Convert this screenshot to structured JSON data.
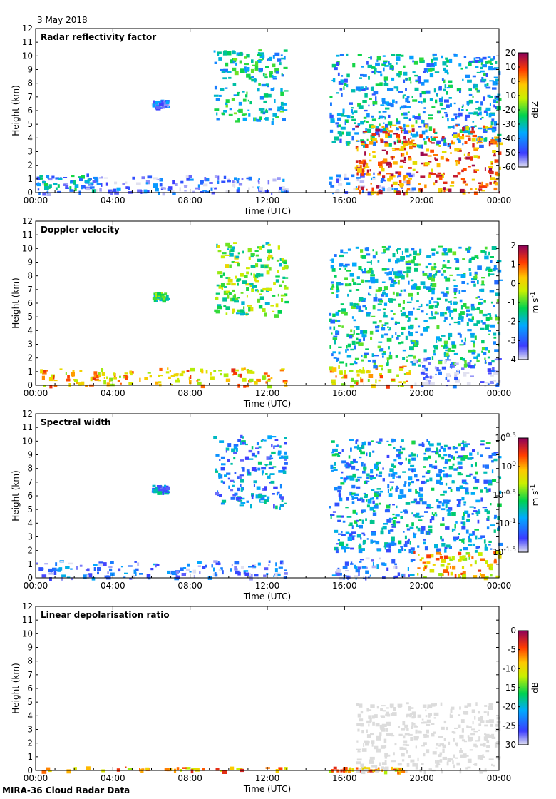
{
  "date": "3 May 2018",
  "footer": "MIRA-36 Cloud Radar Data",
  "chart_data": [
    {
      "type": "heatmap",
      "title": "Radar reflectivity factor",
      "xlabel": "Time (UTC)",
      "ylabel": "Height (km)",
      "x_ticks": [
        "00:00",
        "04:00",
        "08:00",
        "12:00",
        "16:00",
        "20:00",
        "00:00"
      ],
      "y_ticks": [
        "0",
        "1",
        "2",
        "3",
        "4",
        "5",
        "6",
        "7",
        "8",
        "9",
        "10",
        "11",
        "12"
      ],
      "xlim": [
        0,
        24
      ],
      "ylim": [
        0,
        12
      ],
      "colorbar": {
        "label": "dBZ",
        "range": [
          -60,
          20
        ],
        "ticks": [
          "20",
          "10",
          "0",
          "-10",
          "-20",
          "-30",
          "-40",
          "-50",
          "-60"
        ]
      },
      "features": [
        {
          "name": "boundary-layer",
          "t0": 0.0,
          "t1": 13.0,
          "z0": 0.0,
          "z1": 1.3,
          "value": -50
        },
        {
          "name": "low-cloud-bump",
          "t0": 0.0,
          "t1": 3.0,
          "z0": 0.2,
          "z1": 1.4,
          "value": -35
        },
        {
          "name": "mid-patch",
          "t0": 6.0,
          "t1": 6.8,
          "z0": 6.3,
          "z1": 6.8,
          "value": -48
        },
        {
          "name": "upper-streak",
          "t0": 9.2,
          "t1": 12.9,
          "z0": 5.2,
          "z1": 10.5,
          "value": -30
        },
        {
          "name": "late-boundary-layer",
          "t0": 15.2,
          "t1": 19.5,
          "z0": 0.0,
          "z1": 1.5,
          "value": -50
        },
        {
          "name": "deep-system-top",
          "t0": 15.2,
          "t1": 24.0,
          "z0": 3.5,
          "z1": 10.2,
          "value": -35
        },
        {
          "name": "deep-system-core",
          "t0": 16.5,
          "t1": 24.0,
          "z0": 0.0,
          "z1": 5.0,
          "value": 5
        }
      ]
    },
    {
      "type": "heatmap",
      "title": "Doppler velocity",
      "xlabel": "Time (UTC)",
      "ylabel": "Height (km)",
      "x_ticks": [
        "00:00",
        "04:00",
        "08:00",
        "12:00",
        "16:00",
        "20:00",
        "00:00"
      ],
      "y_ticks": [
        "0",
        "1",
        "2",
        "3",
        "4",
        "5",
        "6",
        "7",
        "8",
        "9",
        "10",
        "11",
        "12"
      ],
      "xlim": [
        0,
        24
      ],
      "ylim": [
        0,
        12
      ],
      "colorbar": {
        "label": "m s",
        "label_exponent": "-1",
        "range": [
          -4,
          2
        ],
        "ticks": [
          "2",
          "1",
          "0",
          "-1",
          "-2",
          "-3",
          "-4"
        ]
      },
      "features": [
        {
          "name": "boundary-layer",
          "t0": 0.0,
          "t1": 13.0,
          "z0": 0.0,
          "z1": 1.3,
          "value": 0.3
        },
        {
          "name": "mid-patch",
          "t0": 6.0,
          "t1": 6.8,
          "z0": 6.3,
          "z1": 6.8,
          "value": -1.5
        },
        {
          "name": "upper-streak",
          "t0": 9.2,
          "t1": 12.9,
          "z0": 5.2,
          "z1": 10.5,
          "value": -1.0
        },
        {
          "name": "late-boundary-layer",
          "t0": 15.2,
          "t1": 19.5,
          "z0": 0.0,
          "z1": 1.5,
          "value": 0.2
        },
        {
          "name": "deep-system",
          "t0": 15.2,
          "t1": 24.0,
          "z0": 1.5,
          "z1": 10.2,
          "value": -1.8
        },
        {
          "name": "rain-below-melting",
          "t0": 19.5,
          "t1": 24.0,
          "z0": 0.0,
          "z1": 2.0,
          "value": -3.6
        }
      ]
    },
    {
      "type": "heatmap",
      "title": "Spectral width",
      "xlabel": "Time (UTC)",
      "ylabel": "Height (km)",
      "x_ticks": [
        "00:00",
        "04:00",
        "08:00",
        "12:00",
        "16:00",
        "20:00",
        "00:00"
      ],
      "y_ticks": [
        "0",
        "1",
        "2",
        "3",
        "4",
        "5",
        "6",
        "7",
        "8",
        "9",
        "10",
        "11",
        "12"
      ],
      "xlim": [
        0,
        24
      ],
      "ylim": [
        0,
        12
      ],
      "colorbar": {
        "label": "m s",
        "label_exponent": "-1",
        "scale": "log",
        "range": [
          -1.5,
          0.5
        ],
        "ticks": [
          "10",
          "10",
          "10",
          "10",
          "10"
        ],
        "tick_exponents": [
          "0.5",
          "0",
          "-0.5",
          "-1",
          "-1.5"
        ]
      },
      "features": [
        {
          "name": "boundary-layer",
          "t0": 0.0,
          "t1": 13.0,
          "z0": 0.0,
          "z1": 1.3,
          "value": -1.2
        },
        {
          "name": "mid-patch",
          "t0": 6.0,
          "t1": 6.8,
          "z0": 6.3,
          "z1": 6.8,
          "value": -1.0
        },
        {
          "name": "upper-streak",
          "t0": 9.2,
          "t1": 12.9,
          "z0": 5.2,
          "z1": 10.5,
          "value": -1.0
        },
        {
          "name": "late-boundary-layer",
          "t0": 15.2,
          "t1": 19.5,
          "z0": 0.0,
          "z1": 1.5,
          "value": -1.2
        },
        {
          "name": "deep-system",
          "t0": 15.2,
          "t1": 24.0,
          "z0": 2.0,
          "z1": 10.2,
          "value": -0.9
        },
        {
          "name": "rain-below-melting",
          "t0": 19.5,
          "t1": 24.0,
          "z0": 0.0,
          "z1": 2.0,
          "value": -0.1
        }
      ]
    },
    {
      "type": "heatmap",
      "title": "Linear depolarisation ratio",
      "xlabel": "Time (UTC)",
      "ylabel": "Height (km)",
      "x_ticks": [
        "00:00",
        "04:00",
        "08:00",
        "12:00",
        "16:00",
        "20:00",
        "00:00"
      ],
      "y_ticks": [
        "0",
        "1",
        "2",
        "3",
        "4",
        "5",
        "6",
        "7",
        "8",
        "9",
        "10",
        "11",
        "12"
      ],
      "xlim": [
        0,
        24
      ],
      "ylim": [
        0,
        12
      ],
      "colorbar": {
        "label": "dB",
        "range": [
          -30,
          0
        ],
        "ticks": [
          "0",
          "-5",
          "-10",
          "-15",
          "-20",
          "-25",
          "-30"
        ]
      },
      "features": [
        {
          "name": "surface-clutter",
          "t0": 0.0,
          "t1": 13.0,
          "z0": 0.0,
          "z1": 0.3,
          "value": -8
        },
        {
          "name": "late-surface-clutter",
          "t0": 15.2,
          "t1": 19.5,
          "z0": 0.0,
          "z1": 0.3,
          "value": -8
        },
        {
          "name": "below-threshold-region",
          "t0": 16.5,
          "t1": 24.0,
          "z0": 0.0,
          "z1": 5.0,
          "value": -31
        }
      ]
    }
  ]
}
